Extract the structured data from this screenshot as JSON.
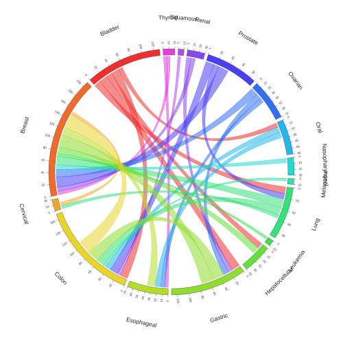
{
  "chart_data": {
    "type": "chord",
    "sectors": [
      {
        "name": "Thyroid",
        "value": 20,
        "color": "#e33fe0",
        "ticks": [
          0,
          10,
          20
        ]
      },
      {
        "name": "Squamous",
        "value": 10,
        "color": "#b44be6",
        "ticks": [
          0,
          10
        ]
      },
      {
        "name": "Renal",
        "value": 30,
        "color": "#8a46f0",
        "ticks": [
          0,
          10,
          20,
          30
        ]
      },
      {
        "name": "Prostate",
        "value": 90,
        "color": "#4a3ff2",
        "ticks": [
          0,
          20,
          40,
          60,
          80
        ]
      },
      {
        "name": "Ovarian",
        "value": 70,
        "color": "#2f6ff2",
        "ticks": [
          0,
          10,
          20,
          30,
          40,
          50,
          60,
          70
        ]
      },
      {
        "name": "Oral",
        "value": 60,
        "color": "#23b6ea",
        "ticks": [
          0,
          10,
          20,
          30,
          40,
          50,
          60
        ]
      },
      {
        "name": "Nasopharyngeal",
        "value": 30,
        "color": "#25d8d3",
        "ticks": [
          0,
          10,
          20,
          30
        ]
      },
      {
        "name": "Melanoma",
        "value": 10,
        "color": "#2fe0a6",
        "ticks": [
          0,
          10
        ]
      },
      {
        "name": "Lung",
        "value": 90,
        "color": "#34e07a",
        "ticks": [
          0,
          20,
          40,
          60,
          80
        ]
      },
      {
        "name": "Leukemia",
        "value": 10,
        "color": "#3edc55",
        "ticks": [
          0,
          10
        ]
      },
      {
        "name": "Hepatocellular",
        "value": 50,
        "color": "#63e03a",
        "ticks": [
          0,
          10,
          20,
          30,
          40,
          50
        ]
      },
      {
        "name": "Gastric",
        "value": 130,
        "color": "#8fdd2e",
        "ticks": [
          0,
          20,
          40,
          60,
          80,
          100,
          120
        ]
      },
      {
        "name": "Esophageal",
        "value": 70,
        "color": "#b6dc2a",
        "ticks": [
          0,
          10,
          20,
          30,
          40,
          50,
          60,
          70
        ]
      },
      {
        "name": "Colon",
        "value": 170,
        "color": "#e8d42a",
        "ticks": [
          0,
          20,
          40,
          60,
          80,
          100,
          120,
          140,
          160
        ]
      },
      {
        "name": "Cervical",
        "value": 20,
        "color": "#f0a52c",
        "ticks": [
          0,
          10,
          20
        ]
      },
      {
        "name": "Breast",
        "value": 210,
        "color": "#f06a2a",
        "ticks": [
          0,
          20,
          40,
          60,
          80,
          100,
          120,
          140,
          160,
          180,
          200
        ]
      },
      {
        "name": "Bladder",
        "value": 130,
        "color": "#ee2f2f",
        "ticks": [
          0,
          20,
          40,
          60,
          80,
          100,
          120
        ]
      }
    ],
    "links": [
      {
        "source": "Bladder",
        "target": "Lung",
        "value": 12
      },
      {
        "source": "Bladder",
        "target": "Gastric",
        "value": 15
      },
      {
        "source": "Bladder",
        "target": "Hepatocellular",
        "value": 10
      },
      {
        "source": "Bladder",
        "target": "Colon",
        "value": 14
      },
      {
        "source": "Bladder",
        "target": "Oral",
        "value": 8
      },
      {
        "source": "Thyroid",
        "target": "Esophageal",
        "value": 6
      },
      {
        "source": "Thyroid",
        "target": "Breast",
        "value": 6
      },
      {
        "source": "Squamous",
        "target": "Colon",
        "value": 5
      },
      {
        "source": "Renal",
        "target": "Gastric",
        "value": 8
      },
      {
        "source": "Renal",
        "target": "Breast",
        "value": 8
      },
      {
        "source": "Prostate",
        "target": "Colon",
        "value": 15
      },
      {
        "source": "Prostate",
        "target": "Lung",
        "value": 10
      },
      {
        "source": "Prostate",
        "target": "Breast",
        "value": 18
      },
      {
        "source": "Ovarian",
        "target": "Breast",
        "value": 14
      },
      {
        "source": "Ovarian",
        "target": "Gastric",
        "value": 10
      },
      {
        "source": "Ovarian",
        "target": "Esophageal",
        "value": 8
      },
      {
        "source": "Oral",
        "target": "Colon",
        "value": 10
      },
      {
        "source": "Oral",
        "target": "Esophageal",
        "value": 10
      },
      {
        "source": "Nasopharyngeal",
        "target": "Breast",
        "value": 8
      },
      {
        "source": "Melanoma",
        "target": "Colon",
        "value": 5
      },
      {
        "source": "Lung",
        "target": "Breast",
        "value": 16
      },
      {
        "source": "Lung",
        "target": "Colon",
        "value": 14
      },
      {
        "source": "Lung",
        "target": "Cervical",
        "value": 6
      },
      {
        "source": "Leukemia",
        "target": "Breast",
        "value": 5
      },
      {
        "source": "Hepatocellular",
        "target": "Breast",
        "value": 12
      },
      {
        "source": "Gastric",
        "target": "Colon",
        "value": 20
      },
      {
        "source": "Gastric",
        "target": "Breast",
        "value": 22
      },
      {
        "source": "Esophageal",
        "target": "Breast",
        "value": 14
      },
      {
        "source": "Colon",
        "target": "Breast",
        "value": 25
      },
      {
        "source": "Cervical",
        "target": "Breast",
        "value": 6
      }
    ]
  }
}
